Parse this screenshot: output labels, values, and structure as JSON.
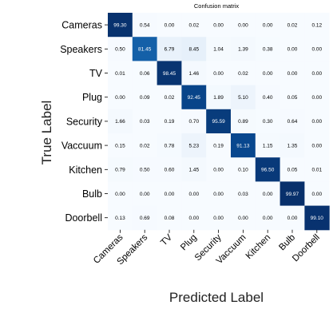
{
  "chart_data": {
    "type": "heatmap",
    "title": "Confusion matrix",
    "xlabel": "Predicted Label",
    "ylabel": "True Label",
    "row_labels": [
      "Cameras",
      "Speakers",
      "TV",
      "Plug",
      "Security",
      "Vaccuum",
      "Kitchen",
      "Bulb",
      "Doorbell"
    ],
    "col_labels": [
      "Cameras",
      "Speakers",
      "TV",
      "Plug",
      "Security",
      "Vaccuum",
      "Kitchen",
      "Bulb",
      "Doorbell"
    ],
    "values": [
      [
        99.3,
        0.54,
        0.0,
        0.02,
        0.0,
        0.0,
        0.0,
        0.02,
        0.12
      ],
      [
        0.5,
        81.45,
        6.79,
        8.45,
        1.04,
        1.39,
        0.38,
        0.0,
        0.0
      ],
      [
        0.01,
        0.06,
        98.45,
        1.46,
        0.0,
        0.02,
        0.0,
        0.0,
        0.0
      ],
      [
        0.0,
        0.09,
        0.02,
        92.45,
        1.89,
        5.1,
        0.4,
        0.05,
        0.0
      ],
      [
        1.66,
        0.03,
        0.19,
        0.7,
        95.59,
        0.89,
        0.3,
        0.64,
        0.0
      ],
      [
        0.15,
        0.02,
        0.78,
        5.23,
        0.19,
        91.13,
        1.15,
        1.35,
        0.0
      ],
      [
        0.79,
        0.5,
        0.6,
        1.45,
        0.0,
        0.1,
        96.5,
        0.05,
        0.01
      ],
      [
        0.0,
        0.0,
        0.0,
        0.0,
        0.0,
        0.03,
        0.0,
        99.97,
        0.0
      ],
      [
        0.13,
        0.69,
        0.08,
        0.0,
        0.0,
        0.0,
        0.0,
        0.0,
        99.1
      ]
    ],
    "colormap": "Blues",
    "vmin": 0,
    "vmax": 100,
    "colors": {
      "low": "#f7fbff",
      "high": "#08306b",
      "text_dark": "#000000",
      "text_light": "#ffffff"
    }
  }
}
